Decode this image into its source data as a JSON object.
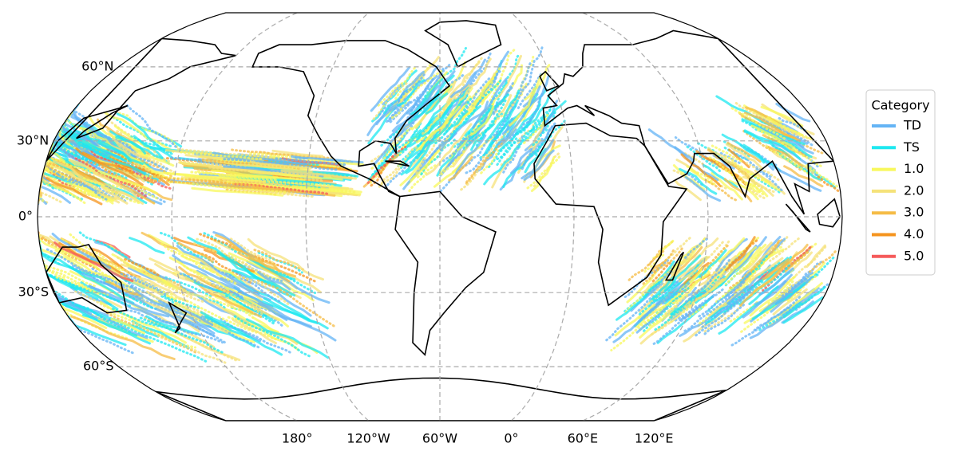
{
  "map": {
    "lat_labels": [
      {
        "value": 60,
        "label": "60°N"
      },
      {
        "value": 30,
        "label": "30°N"
      },
      {
        "value": 0,
        "label": "0°"
      },
      {
        "value": -30,
        "label": "30°S"
      },
      {
        "value": -60,
        "label": "60°S"
      }
    ],
    "lon_labels": [
      {
        "value": -180,
        "label": "180°"
      },
      {
        "value": -120,
        "label": "120°W"
      },
      {
        "value": -60,
        "label": "60°W"
      },
      {
        "value": 0,
        "label": "0°"
      },
      {
        "value": 60,
        "label": "60°E"
      },
      {
        "value": 120,
        "label": "120°E"
      }
    ],
    "legend": {
      "title": "Category",
      "items": [
        {
          "label": "TD",
          "color": "#64b4f5"
        },
        {
          "label": "TS",
          "color": "#1ee8f0"
        },
        {
          "label": "1.0",
          "color": "#f8f85c"
        },
        {
          "label": "2.0",
          "color": "#f5e27a"
        },
        {
          "label": "3.0",
          "color": "#f5bc46"
        },
        {
          "label": "4.0",
          "color": "#f5941e"
        },
        {
          "label": "5.0",
          "color": "#f55a5a"
        }
      ]
    }
  }
}
